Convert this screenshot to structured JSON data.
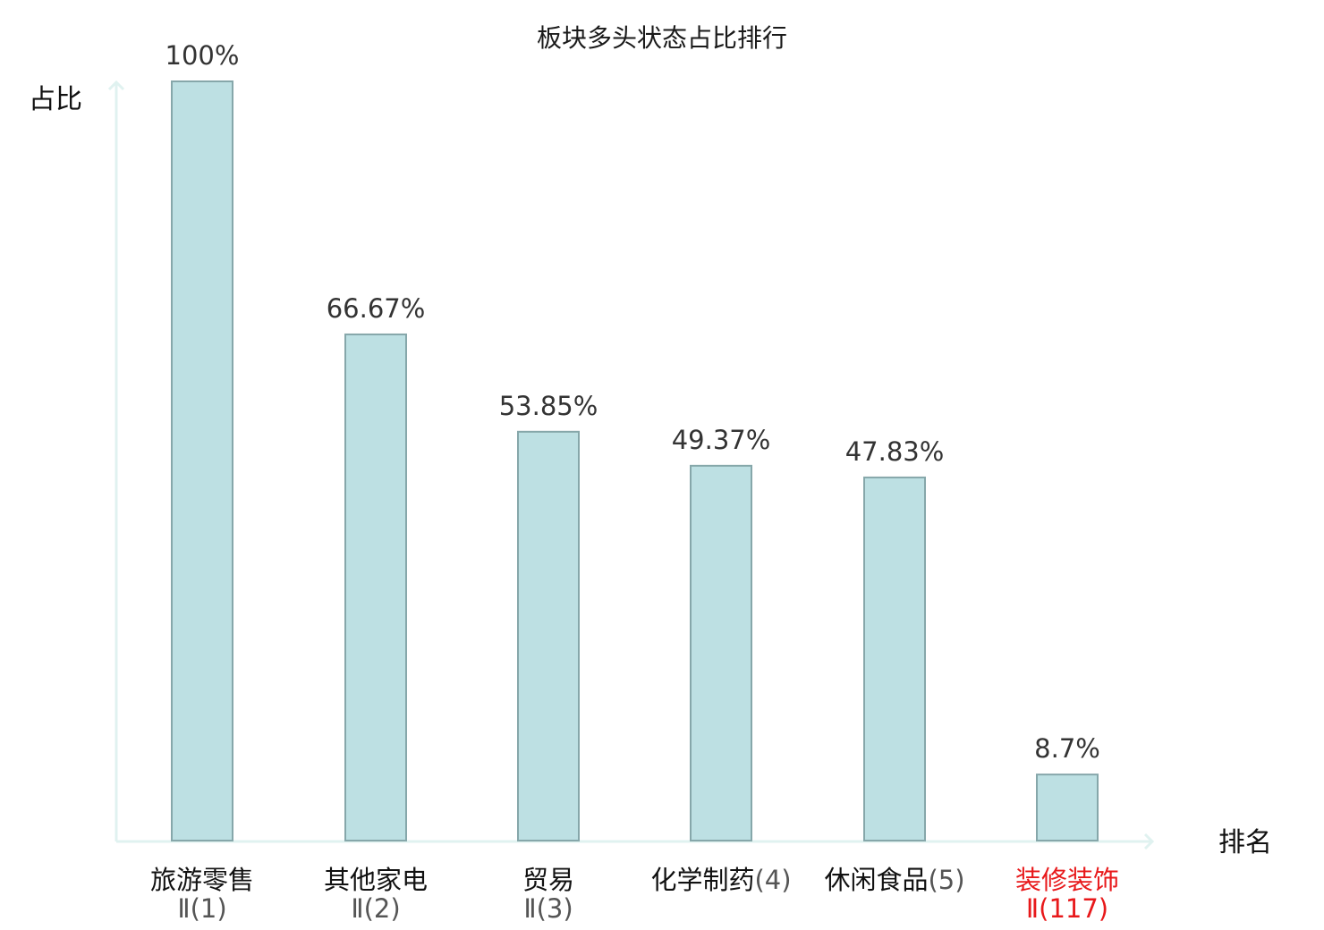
{
  "chart_data": {
    "type": "bar",
    "title": "板块多头状态占比排行",
    "ylabel": "占比",
    "xlabel": "排名",
    "ylim": [
      0,
      100
    ],
    "grid": false,
    "legend": "none",
    "categories": [
      {
        "name": "旅游零售",
        "suffix": "Ⅱ(1)",
        "highlight": false
      },
      {
        "name": "其他家电",
        "suffix": "Ⅱ(2)",
        "highlight": false
      },
      {
        "name": "贸易",
        "suffix": "Ⅱ(3)",
        "highlight": false
      },
      {
        "name": "化学制药",
        "suffix": "(4)",
        "highlight": false
      },
      {
        "name": "休闲食品",
        "suffix": "(5)",
        "highlight": false
      },
      {
        "name": "装修装饰",
        "suffix": "Ⅱ(117)",
        "highlight": true
      }
    ],
    "values": [
      100,
      66.67,
      53.85,
      49.37,
      47.83,
      8.7
    ],
    "value_labels": [
      "100%",
      "66.67%",
      "53.85%",
      "49.37%",
      "47.83%",
      "8.7%"
    ]
  },
  "colors": {
    "bar_fill": "#bde0e3",
    "bar_stroke": "#86a7aa",
    "axis": "#e0f2f0",
    "highlight": "#e8191b"
  }
}
